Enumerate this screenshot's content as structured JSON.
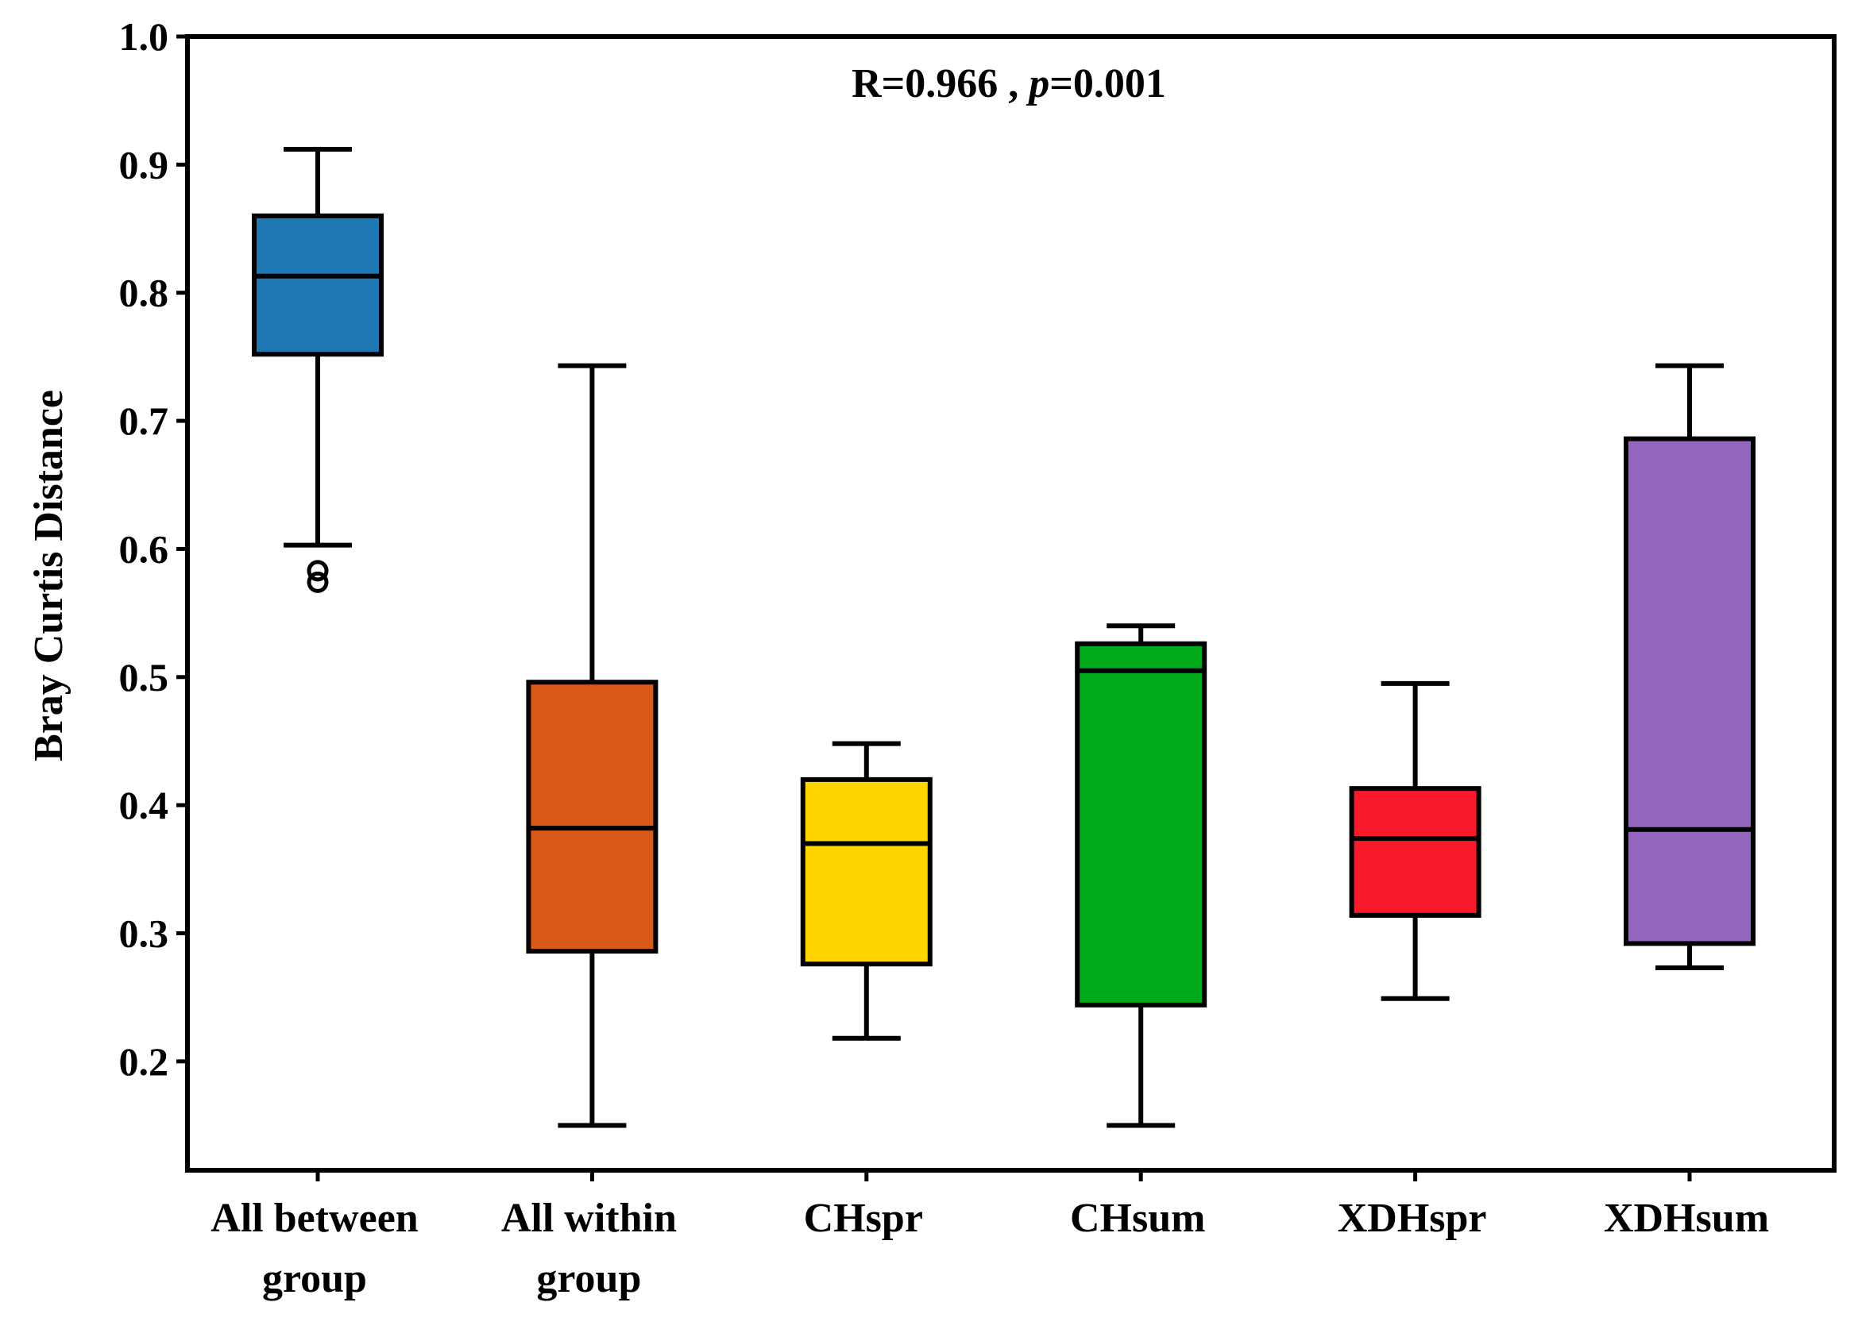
{
  "chart_data": {
    "type": "box",
    "title": "",
    "annotation": {
      "r_text": "R=0.966 , ",
      "p_symbol": "p",
      "p_text": "=0.001"
    },
    "xlabel": "",
    "ylabel": "Bray Curtis Distance",
    "ylim": [
      0.115,
      1.0
    ],
    "yticks": [
      0.2,
      0.3,
      0.4,
      0.5,
      0.6,
      0.7,
      0.8,
      0.9,
      1.0
    ],
    "ytick_labels": [
      "0.2",
      "0.3",
      "0.4",
      "0.5",
      "0.6",
      "0.7",
      "0.8",
      "0.9",
      "1.0"
    ],
    "categories": [
      {
        "name": "All between group",
        "lines": [
          "All between",
          "group"
        ],
        "color": "#1f77b4",
        "whisker_low": 0.603,
        "q1": 0.752,
        "median": 0.813,
        "q3": 0.86,
        "whisker_high": 0.912,
        "outliers": [
          0.574,
          0.583
        ]
      },
      {
        "name": "All within group",
        "lines": [
          "All within",
          "group"
        ],
        "color": "#d95919",
        "whisker_low": 0.15,
        "q1": 0.286,
        "median": 0.382,
        "q3": 0.496,
        "whisker_high": 0.743,
        "outliers": []
      },
      {
        "name": "CHspr",
        "lines": [
          "CHspr"
        ],
        "color": "#ffd500",
        "whisker_low": 0.218,
        "q1": 0.276,
        "median": 0.37,
        "q3": 0.42,
        "whisker_high": 0.448,
        "outliers": []
      },
      {
        "name": "CHsum",
        "lines": [
          "CHsum"
        ],
        "color": "#00aa1a",
        "whisker_low": 0.15,
        "q1": 0.244,
        "median": 0.505,
        "q3": 0.526,
        "whisker_high": 0.54,
        "outliers": []
      },
      {
        "name": "XDHspr",
        "lines": [
          "XDHspr"
        ],
        "color": "#f81a2a",
        "whisker_low": 0.249,
        "q1": 0.314,
        "median": 0.374,
        "q3": 0.413,
        "whisker_high": 0.495,
        "outliers": []
      },
      {
        "name": "XDHsum",
        "lines": [
          "XDHsum"
        ],
        "color": "#9467bd",
        "whisker_low": 0.273,
        "q1": 0.292,
        "median": 0.381,
        "q3": 0.686,
        "whisker_high": 0.743,
        "outliers": []
      }
    ]
  }
}
